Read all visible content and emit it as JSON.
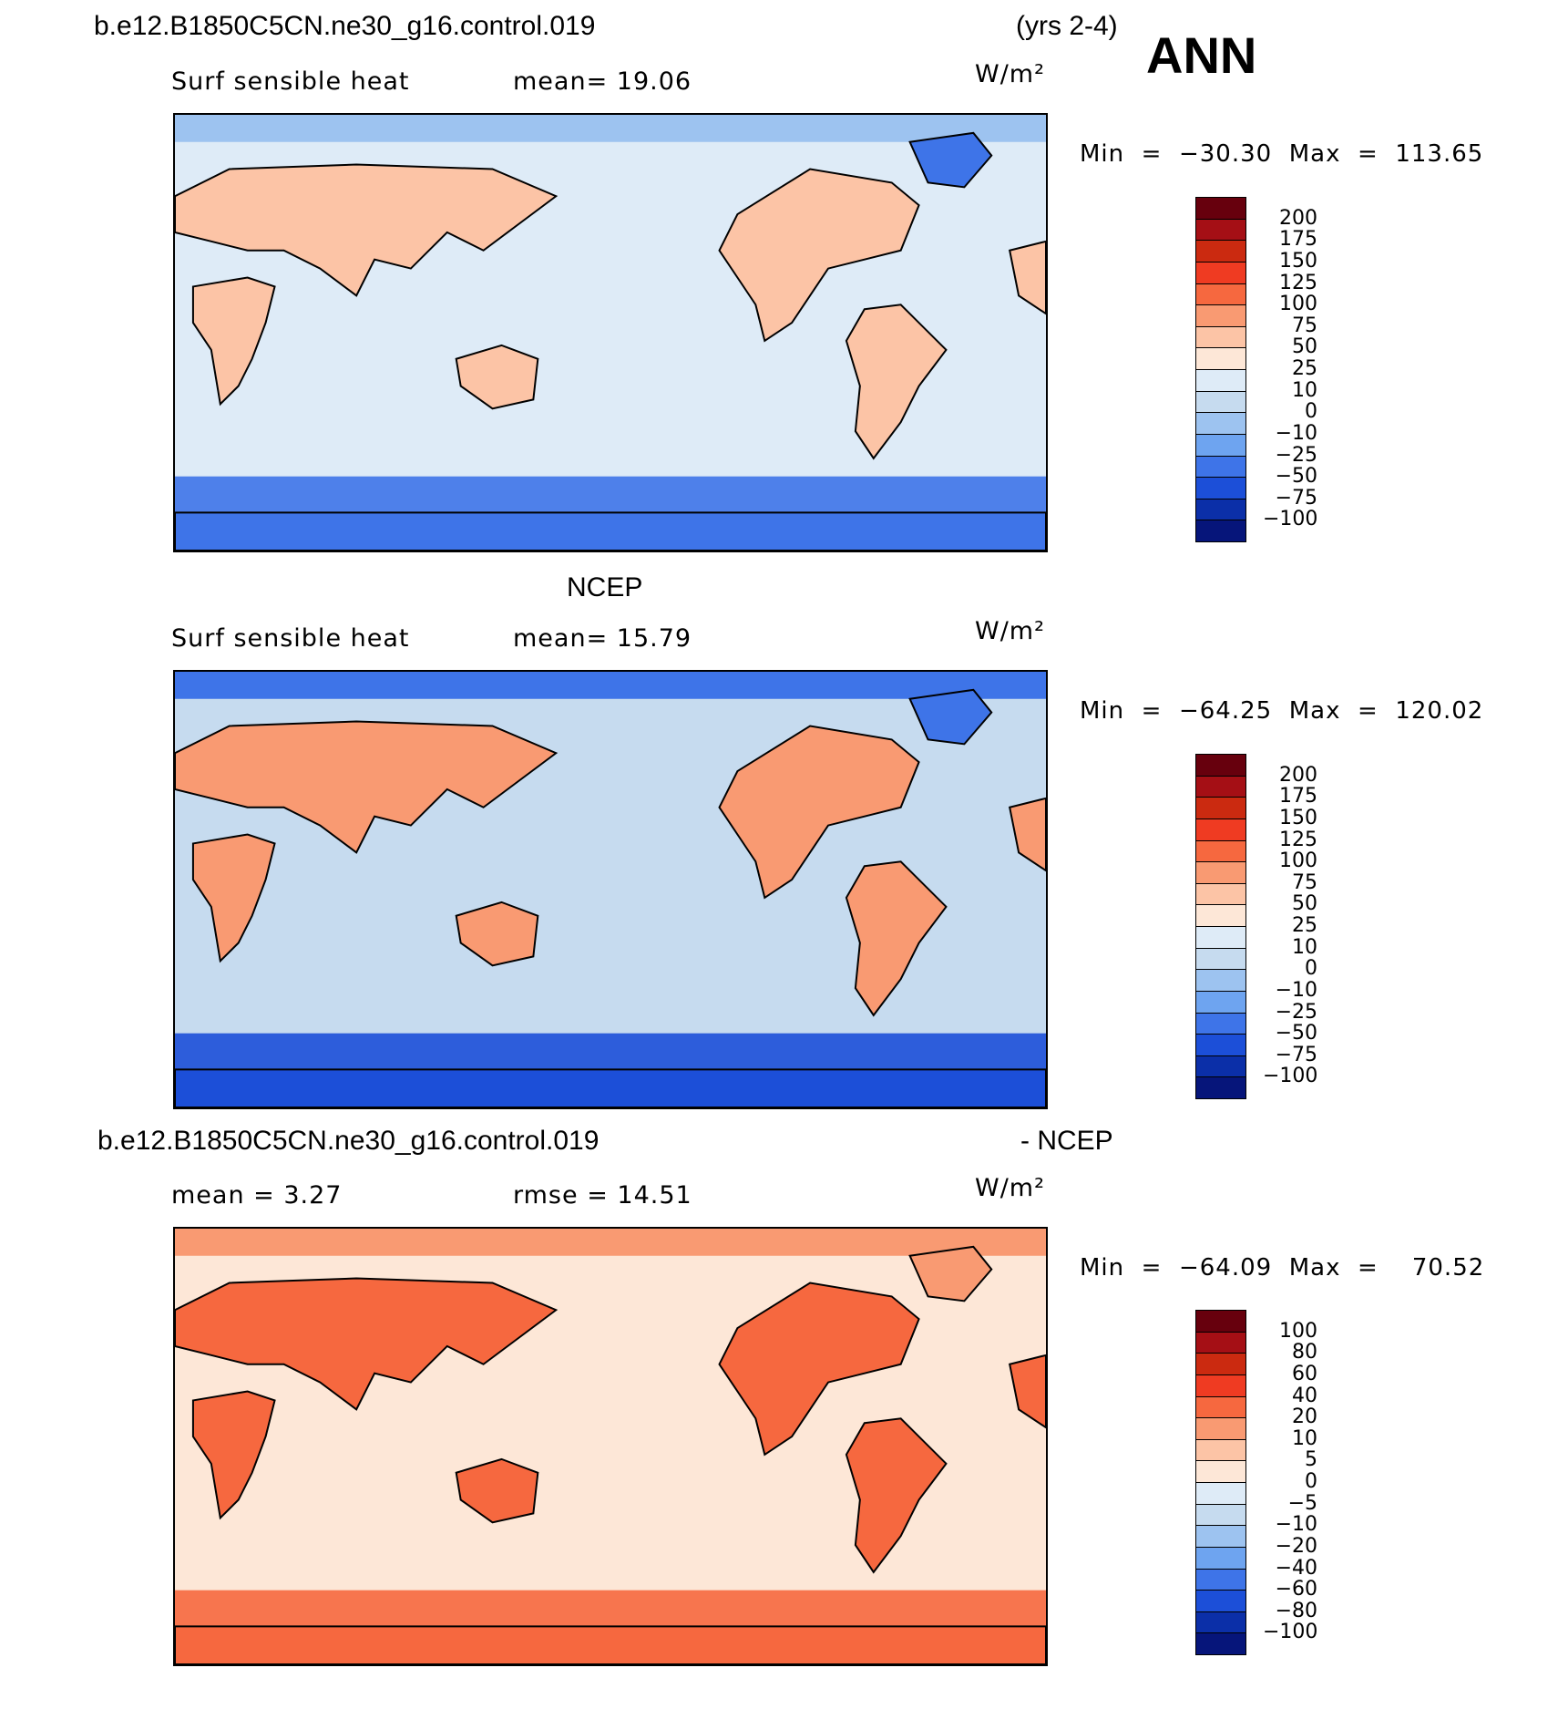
{
  "header": {
    "case_name": "b.e12.B1850C5CN.ne30_g16.control.019",
    "years": "(yrs 2-4)",
    "season": "ANN"
  },
  "panels": [
    {
      "title": "",
      "left_label": "Surf  sensible  heat",
      "center_label": "mean=   19.06",
      "units": "W/m²",
      "minmax": "Min  =  −30.30  Max  =  113.65",
      "colorbar": {
        "labels": [
          "200",
          "175",
          "150",
          "125",
          "100",
          "75",
          "50",
          "25",
          "10",
          "0",
          "−10",
          "−25",
          "−50",
          "−75",
          "−100"
        ],
        "colors": [
          "#67000d",
          "#a50f15",
          "#cb2a10",
          "#ef3b22",
          "#f6683f",
          "#f99a72",
          "#fcc4a6",
          "#fde7d7",
          "#deebf7",
          "#c6dbef",
          "#9dc3f0",
          "#6ea4f0",
          "#3e74e8",
          "#1c4fd8",
          "#0b2fa8",
          "#06157a"
        ]
      },
      "map": {
        "ocean": "#deebf7",
        "land": "#fcc4a6",
        "north_band": "#9dc3f0",
        "south_band": "#3e74e8",
        "greenland": "#3e74e8"
      }
    },
    {
      "title": "NCEP",
      "left_label": "Surf  sensible  heat",
      "center_label": "mean=   15.79",
      "units": "W/m²",
      "minmax": "Min  =  −64.25  Max  =  120.02",
      "colorbar": {
        "labels": [
          "200",
          "175",
          "150",
          "125",
          "100",
          "75",
          "50",
          "25",
          "10",
          "0",
          "−10",
          "−25",
          "−50",
          "−75",
          "−100"
        ],
        "colors": [
          "#67000d",
          "#a50f15",
          "#cb2a10",
          "#ef3b22",
          "#f6683f",
          "#f99a72",
          "#fcc4a6",
          "#fde7d7",
          "#deebf7",
          "#c6dbef",
          "#9dc3f0",
          "#6ea4f0",
          "#3e74e8",
          "#1c4fd8",
          "#0b2fa8",
          "#06157a"
        ]
      },
      "map": {
        "ocean": "#c6dbef",
        "land": "#f99a72",
        "north_band": "#3e74e8",
        "south_band": "#1c4fd8",
        "greenland": "#3e74e8"
      }
    },
    {
      "title_left": "b.e12.B1850C5CN.ne30_g16.control.019",
      "title_right": "- NCEP",
      "left_label": "mean  =     3.27",
      "center_label": "rmse  =    14.51",
      "units": "W/m²",
      "minmax": "Min  =  −64.09  Max  =    70.52",
      "colorbar": {
        "labels": [
          "100",
          "80",
          "60",
          "40",
          "20",
          "10",
          "5",
          "0",
          "−5",
          "−10",
          "−20",
          "−40",
          "−60",
          "−80",
          "−100"
        ],
        "colors": [
          "#67000d",
          "#a50f15",
          "#cb2a10",
          "#ef3b22",
          "#f6683f",
          "#f99a72",
          "#fcc4a6",
          "#fde7d7",
          "#deebf7",
          "#c6dbef",
          "#9dc3f0",
          "#6ea4f0",
          "#3e74e8",
          "#1c4fd8",
          "#0b2fa8",
          "#06157a"
        ]
      },
      "map": {
        "ocean": "#fde7d7",
        "land": "#f6683f",
        "north_band": "#f99a72",
        "south_band": "#f6683f",
        "greenland": "#f99a72"
      }
    }
  ]
}
